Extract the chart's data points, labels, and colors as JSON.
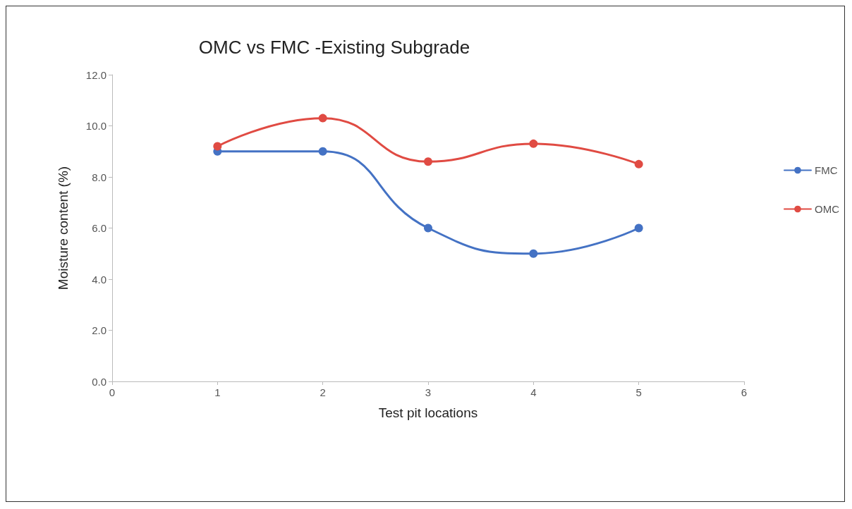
{
  "chart_data": {
    "type": "line",
    "title": "OMC vs FMC -Existing Subgrade",
    "xlabel": "Test pit locations",
    "ylabel": "Moisture content (%)",
    "x": [
      1,
      2,
      3,
      4,
      5
    ],
    "series": [
      {
        "name": "FMC",
        "color": "#4472c4",
        "values": [
          9.0,
          9.0,
          6.0,
          5.0,
          6.0
        ]
      },
      {
        "name": "OMC",
        "color": "#e04b43",
        "values": [
          9.2,
          10.3,
          8.6,
          9.3,
          8.5
        ]
      }
    ],
    "xlim": [
      0,
      6
    ],
    "xticks": [
      0,
      1,
      2,
      3,
      4,
      5,
      6
    ],
    "ylim": [
      0,
      12
    ],
    "yticks": [
      {
        "value": 0,
        "label": "0.0"
      },
      {
        "value": 2,
        "label": "2.0"
      },
      {
        "value": 4,
        "label": "4.0"
      },
      {
        "value": 6,
        "label": "6.0"
      },
      {
        "value": 8,
        "label": "8.0"
      },
      {
        "value": 10,
        "label": "10.0"
      },
      {
        "value": 12,
        "label": "12.0"
      }
    ],
    "grid": false,
    "legend": "right",
    "marker": "circle",
    "line_style": "solid"
  }
}
